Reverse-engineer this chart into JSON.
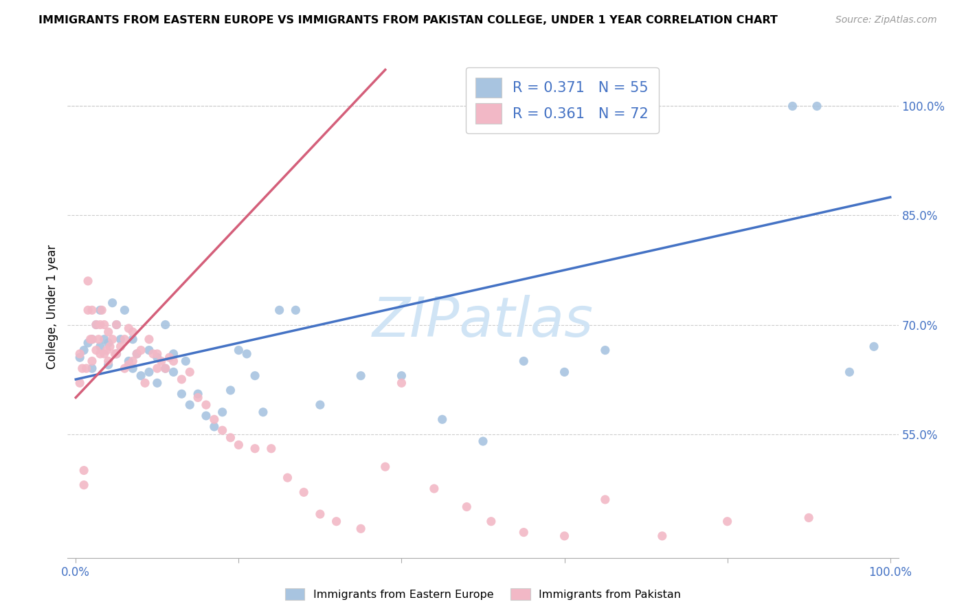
{
  "title": "IMMIGRANTS FROM EASTERN EUROPE VS IMMIGRANTS FROM PAKISTAN COLLEGE, UNDER 1 YEAR CORRELATION CHART",
  "source": "Source: ZipAtlas.com",
  "ylabel": "College, Under 1 year",
  "blue_R": 0.371,
  "blue_N": 55,
  "pink_R": 0.361,
  "pink_N": 72,
  "blue_color": "#a8c4e0",
  "pink_color": "#f2b8c6",
  "blue_line_color": "#4472c4",
  "pink_line_color": "#d45f7a",
  "watermark": "ZIPatlas",
  "watermark_color": "#d0e4f5",
  "xlim": [
    0.0,
    1.0
  ],
  "ylim_data_min": 0.4,
  "ylim_data_max": 1.05,
  "ytick_positions": [
    0.55,
    0.7,
    0.85,
    1.0
  ],
  "ytick_labels": [
    "55.0%",
    "70.0%",
    "85.0%",
    "100.0%"
  ],
  "blue_line_x": [
    0.0,
    1.0
  ],
  "blue_line_y": [
    0.625,
    0.875
  ],
  "pink_line_x": [
    0.0,
    0.38
  ],
  "pink_line_y": [
    0.6,
    1.05
  ],
  "blue_scatter_x": [
    0.005,
    0.01,
    0.015,
    0.02,
    0.02,
    0.025,
    0.03,
    0.03,
    0.035,
    0.04,
    0.04,
    0.045,
    0.05,
    0.05,
    0.055,
    0.06,
    0.065,
    0.07,
    0.07,
    0.075,
    0.08,
    0.09,
    0.09,
    0.1,
    0.1,
    0.11,
    0.11,
    0.12,
    0.12,
    0.13,
    0.135,
    0.14,
    0.15,
    0.16,
    0.17,
    0.18,
    0.19,
    0.2,
    0.21,
    0.22,
    0.23,
    0.25,
    0.27,
    0.3,
    0.35,
    0.4,
    0.45,
    0.5,
    0.55,
    0.6,
    0.65,
    0.88,
    0.91,
    0.95,
    0.98
  ],
  "blue_scatter_y": [
    0.655,
    0.665,
    0.675,
    0.64,
    0.68,
    0.7,
    0.67,
    0.72,
    0.68,
    0.645,
    0.675,
    0.73,
    0.66,
    0.7,
    0.68,
    0.72,
    0.65,
    0.64,
    0.68,
    0.66,
    0.63,
    0.635,
    0.665,
    0.62,
    0.655,
    0.64,
    0.7,
    0.635,
    0.66,
    0.605,
    0.65,
    0.59,
    0.605,
    0.575,
    0.56,
    0.58,
    0.61,
    0.665,
    0.66,
    0.63,
    0.58,
    0.72,
    0.72,
    0.59,
    0.63,
    0.63,
    0.57,
    0.54,
    0.65,
    0.635,
    0.665,
    1.0,
    1.0,
    0.635,
    0.67
  ],
  "pink_scatter_x": [
    0.005,
    0.005,
    0.008,
    0.01,
    0.01,
    0.013,
    0.015,
    0.015,
    0.018,
    0.02,
    0.02,
    0.02,
    0.025,
    0.025,
    0.028,
    0.03,
    0.03,
    0.032,
    0.035,
    0.035,
    0.038,
    0.04,
    0.04,
    0.042,
    0.045,
    0.048,
    0.05,
    0.05,
    0.055,
    0.06,
    0.06,
    0.065,
    0.065,
    0.07,
    0.07,
    0.075,
    0.08,
    0.085,
    0.09,
    0.095,
    0.1,
    0.1,
    0.105,
    0.11,
    0.115,
    0.12,
    0.13,
    0.14,
    0.15,
    0.16,
    0.17,
    0.18,
    0.19,
    0.2,
    0.22,
    0.24,
    0.26,
    0.28,
    0.3,
    0.32,
    0.35,
    0.38,
    0.4,
    0.44,
    0.48,
    0.51,
    0.55,
    0.6,
    0.65,
    0.72,
    0.8,
    0.9
  ],
  "pink_scatter_y": [
    0.62,
    0.66,
    0.64,
    0.48,
    0.5,
    0.64,
    0.72,
    0.76,
    0.68,
    0.65,
    0.68,
    0.72,
    0.665,
    0.7,
    0.68,
    0.66,
    0.7,
    0.72,
    0.66,
    0.7,
    0.665,
    0.65,
    0.69,
    0.67,
    0.68,
    0.66,
    0.66,
    0.7,
    0.67,
    0.64,
    0.68,
    0.645,
    0.695,
    0.65,
    0.69,
    0.66,
    0.665,
    0.62,
    0.68,
    0.66,
    0.64,
    0.66,
    0.65,
    0.64,
    0.655,
    0.65,
    0.625,
    0.635,
    0.6,
    0.59,
    0.57,
    0.555,
    0.545,
    0.535,
    0.53,
    0.53,
    0.49,
    0.47,
    0.44,
    0.43,
    0.42,
    0.505,
    0.62,
    0.475,
    0.45,
    0.43,
    0.415,
    0.41,
    0.46,
    0.41,
    0.43,
    0.435
  ]
}
